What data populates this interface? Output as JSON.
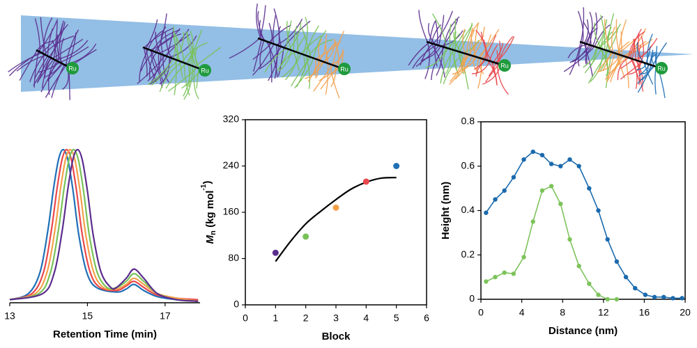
{
  "schematic": {
    "catalyst_labels": [
      "Ru",
      "Ru",
      "Ru",
      "Ru",
      "Ru"
    ]
  },
  "chart_data": [
    {
      "type": "line",
      "smooth": true,
      "markers": false,
      "frame": false,
      "show_y_axis": false,
      "xlabel": "Retention Time (min)",
      "xlim": [
        13,
        17.9
      ],
      "xticks": [
        13,
        15,
        17
      ],
      "ylim": [
        0,
        1.05
      ],
      "series": [
        {
          "color": "#1f6fb5",
          "x": [
            13,
            13.48,
            13.78,
            13.98,
            14.13,
            14.26,
            14.38,
            14.5,
            14.63,
            14.78,
            14.98,
            15.23,
            15.75,
            16,
            16.2,
            16.45,
            16.8,
            17.3,
            17.85
          ],
          "values": [
            0.02,
            0.06,
            0.2,
            0.47,
            0.75,
            0.94,
            1,
            0.93,
            0.73,
            0.44,
            0.2,
            0.1,
            0.07,
            0.09,
            0.12,
            0.08,
            0.04,
            0.02,
            0.01
          ]
        },
        {
          "color": "#e8474c",
          "x": [
            13,
            13.57,
            13.87,
            14.07,
            14.22,
            14.35,
            14.47,
            14.59,
            14.72,
            14.87,
            15.07,
            15.32,
            15.75,
            16,
            16.2,
            16.45,
            16.8,
            17.3,
            17.85
          ],
          "values": [
            0.02,
            0.06,
            0.2,
            0.47,
            0.75,
            0.94,
            1,
            0.93,
            0.73,
            0.44,
            0.2,
            0.1,
            0.08,
            0.11,
            0.14,
            0.1,
            0.05,
            0.03,
            0.02
          ]
        },
        {
          "color": "#f5a04a",
          "x": [
            13,
            13.66,
            13.96,
            14.16,
            14.31,
            14.44,
            14.56,
            14.68,
            14.81,
            14.96,
            15.16,
            15.41,
            15.75,
            16,
            16.2,
            16.45,
            16.8,
            17.3,
            17.85
          ],
          "values": [
            0.02,
            0.06,
            0.2,
            0.47,
            0.75,
            0.94,
            1,
            0.93,
            0.73,
            0.44,
            0.2,
            0.1,
            0.09,
            0.12,
            0.16,
            0.12,
            0.06,
            0.03,
            0.01
          ]
        },
        {
          "color": "#78c257",
          "x": [
            13,
            13.75,
            14.05,
            14.25,
            14.4,
            14.53,
            14.65,
            14.77,
            14.9,
            15.05,
            15.25,
            15.5,
            15.75,
            16,
            16.2,
            16.45,
            16.8,
            17.3,
            17.85
          ],
          "values": [
            0.02,
            0.06,
            0.2,
            0.47,
            0.75,
            0.94,
            1,
            0.93,
            0.73,
            0.44,
            0.2,
            0.1,
            0.1,
            0.14,
            0.19,
            0.14,
            0.06,
            0.02,
            0.01
          ]
        },
        {
          "color": "#5b2d8e",
          "x": [
            13,
            13.85,
            14.15,
            14.35,
            14.5,
            14.63,
            14.75,
            14.87,
            15,
            15.15,
            15.35,
            15.6,
            15.75,
            16,
            16.2,
            16.45,
            16.8,
            17.3,
            17.85
          ],
          "values": [
            0.02,
            0.06,
            0.2,
            0.47,
            0.75,
            0.94,
            1,
            0.93,
            0.73,
            0.44,
            0.2,
            0.1,
            0.1,
            0.16,
            0.22,
            0.16,
            0.06,
            0.02,
            0.01
          ]
        }
      ]
    },
    {
      "type": "scatter",
      "frame": true,
      "xlabel": "Block",
      "ylabel": [
        {
          "text": "M",
          "style": "italic"
        },
        {
          "text": "n",
          "style": "sub"
        },
        {
          "text": " (kg mol"
        },
        {
          "text": "-1",
          "style": "sup"
        },
        {
          "text": ")"
        }
      ],
      "xlim": [
        0,
        6
      ],
      "xticks": [
        0,
        1,
        2,
        3,
        4,
        5,
        6
      ],
      "ylim": [
        0,
        320
      ],
      "yticks": [
        0,
        80,
        160,
        240,
        320
      ],
      "x": [
        1,
        2,
        3,
        4,
        5
      ],
      "values": [
        90,
        118,
        168,
        213,
        240
      ],
      "colors": [
        "#5b2d8e",
        "#78c257",
        "#f5a04a",
        "#e8474c",
        "#1f6fb5"
      ],
      "fit": {
        "color": "#000000",
        "x": [
          1,
          1.5,
          2,
          2.5,
          3,
          3.5,
          4,
          4.5,
          5
        ],
        "values": [
          75,
          110,
          140,
          162,
          182,
          200,
          212,
          219,
          220
        ]
      }
    },
    {
      "type": "line",
      "smooth": false,
      "markers": true,
      "frame": true,
      "xlabel": "Distance (nm)",
      "ylabel": "Height (nm)",
      "xlim": [
        0,
        20
      ],
      "xticks": [
        0,
        4,
        8,
        12,
        16,
        20
      ],
      "ylim": [
        0,
        0.8
      ],
      "yticks": [
        0,
        0.2,
        0.4,
        0.6,
        0.8
      ],
      "x": [
        0.5,
        1.4,
        2.3,
        3.2,
        4.2,
        5.1,
        6,
        6.9,
        7.8,
        8.7,
        9.6,
        10.6,
        11.5,
        12.4,
        13.3,
        14.2,
        15.1,
        16.1,
        17,
        17.9,
        18.8,
        19.7
      ],
      "series": [
        {
          "color": "#1a6aad",
          "values": [
            0.39,
            0.45,
            0.49,
            0.55,
            0.63,
            0.665,
            0.65,
            0.61,
            0.6,
            0.63,
            0.6,
            0.5,
            0.4,
            0.27,
            0.17,
            0.1,
            0.05,
            0.02,
            0.01,
            0.01,
            0.005,
            0.005
          ]
        },
        {
          "color": "#7dc35b",
          "values": [
            0.08,
            0.1,
            0.12,
            0.115,
            0.19,
            0.35,
            0.49,
            0.51,
            0.43,
            0.27,
            0.15,
            0.07,
            0.02,
            0,
            0,
            null,
            null,
            null,
            null,
            null,
            null,
            null
          ]
        }
      ]
    }
  ]
}
